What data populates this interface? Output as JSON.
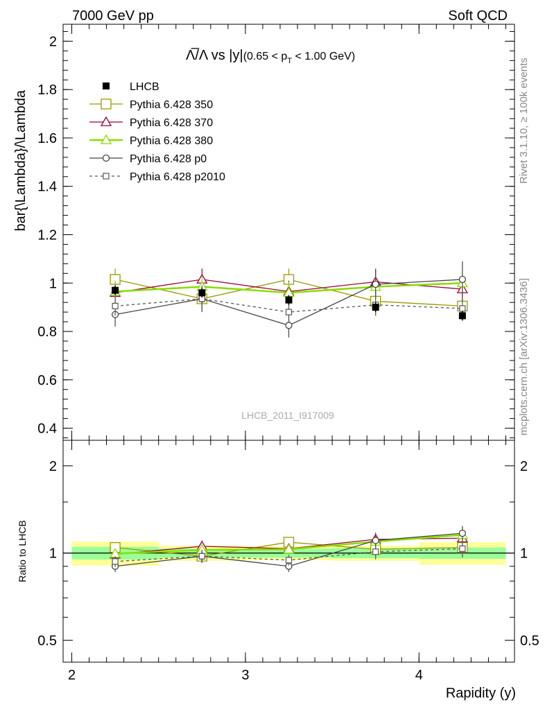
{
  "header": {
    "left": "7000 GeV pp",
    "right": "Soft QCD"
  },
  "side": {
    "rivet": "Rivet 3.1.10, ≥ 100k events",
    "mcplots": "mcplots.cern.ch [arXiv:1306.3436]"
  },
  "chart_data": [
    {
      "type": "line",
      "title_main": "Λ̅/Λ vs |y|",
      "title_sub": "(0.65 < p",
      "title_sub_idx": "T",
      "title_sub_end": " < 1.00 GeV)",
      "ylabel": "bar{\\Lambda}/\\Lambda",
      "watermark": "LHCB_2011_I917009",
      "xlim": [
        1.95,
        4.55
      ],
      "ylim": [
        0.35,
        2.07
      ],
      "yticks": [
        0.4,
        0.6,
        0.8,
        1.0,
        1.2,
        1.4,
        1.6,
        1.8,
        2.0
      ],
      "ytick_labels": [
        "0.4",
        "0.6",
        "0.8",
        "1",
        "1.2",
        "1.4",
        "1.6",
        "1.8",
        "2"
      ],
      "x": [
        2.25,
        2.75,
        3.25,
        3.75,
        4.25
      ],
      "data": {
        "name": "LHCB",
        "values": [
          0.97,
          0.96,
          0.93,
          0.9,
          0.865
        ],
        "errors": [
          0.02,
          0.02,
          0.02,
          0.02,
          0.02
        ]
      },
      "series": [
        {
          "name": "Pythia 6.428 350",
          "color": "#999900",
          "marker": "square-open",
          "dash": false,
          "values": [
            1.015,
            0.935,
            1.015,
            0.925,
            0.905
          ],
          "errors": [
            0.045,
            0.05,
            0.045,
            0.06,
            0.06
          ]
        },
        {
          "name": "Pythia 6.428 370",
          "color": "#990033",
          "marker": "triangle-open",
          "dash": false,
          "values": [
            0.96,
            1.015,
            0.965,
            1.005,
            0.975
          ],
          "errors": [
            0.045,
            0.045,
            0.045,
            0.05,
            0.05
          ]
        },
        {
          "name": "Pythia 6.428 380",
          "color": "#88dd00",
          "marker": "triangle-open",
          "dash": false,
          "values": [
            0.965,
            0.985,
            0.96,
            0.985,
            1.0
          ],
          "errors": [
            0.045,
            0.045,
            0.045,
            0.045,
            0.05
          ]
        },
        {
          "name": "Pythia 6.428 p0",
          "color": "#444444",
          "marker": "circle-open",
          "dash": false,
          "values": [
            0.87,
            0.935,
            0.825,
            0.995,
            1.015
          ],
          "errors": [
            0.05,
            0.055,
            0.05,
            0.065,
            0.075
          ]
        },
        {
          "name": "Pythia 6.428 p2010",
          "color": "#555555",
          "marker": "square-small",
          "dash": true,
          "values": [
            0.905,
            0.935,
            0.88,
            0.91,
            0.895
          ],
          "errors": [
            0.04,
            0.045,
            0.04,
            0.045,
            0.05
          ]
        }
      ]
    },
    {
      "type": "line",
      "ylabel": "Ratio to LHCB",
      "xlabel": "Rapidity (y)",
      "xticks": [
        2,
        3,
        4
      ],
      "xtick_labels": [
        "2",
        "3",
        "4"
      ],
      "ylim": [
        0.42,
        2.45
      ],
      "scale": "log",
      "yticks": [
        0.5,
        1,
        2
      ],
      "ytick_labels": [
        "0.5",
        "1",
        "2"
      ],
      "bins": [
        [
          2.0,
          2.5
        ],
        [
          2.5,
          3.0
        ],
        [
          3.0,
          3.5
        ],
        [
          3.5,
          4.0
        ],
        [
          4.0,
          4.5
        ]
      ],
      "band_inner": [
        0.05,
        0.035,
        0.035,
        0.04,
        0.045
      ],
      "band_outer": [
        0.095,
        0.06,
        0.055,
        0.06,
        0.09
      ],
      "band_colors": {
        "inner": "#99ff99",
        "outer": "#ffff99"
      },
      "series_ratios": [
        [
          1.045,
          0.975,
          1.09,
          1.03,
          1.045
        ],
        [
          0.99,
          1.055,
          1.035,
          1.115,
          1.125
        ],
        [
          0.995,
          1.025,
          1.03,
          1.095,
          1.155
        ],
        [
          0.9,
          0.975,
          0.9,
          1.105,
          1.17
        ],
        [
          0.935,
          0.975,
          0.945,
          1.01,
          1.035
        ]
      ],
      "ratio_errors": [
        0.04,
        0.05,
        0.04,
        0.06,
        0.07
      ]
    }
  ]
}
